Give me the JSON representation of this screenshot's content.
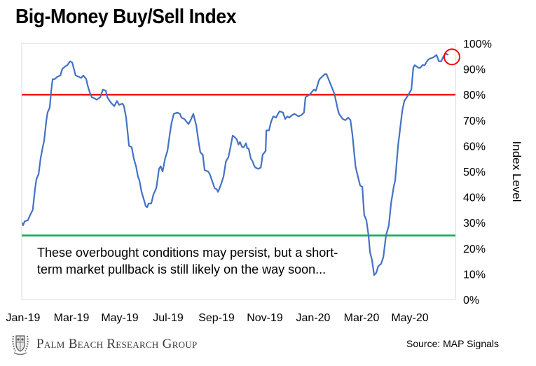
{
  "title": "Big-Money Buy/Sell Index",
  "annotation": {
    "line1": "These overbought conditions may persist, but a short-",
    "line2": "term market pullback is still likely on the way soon..."
  },
  "footer": {
    "brand": "Palm Beach Research Group",
    "logo_icon": "crest-logo-icon",
    "source": "Source: MAP Signals"
  },
  "colors": {
    "series": "#4472c4",
    "overbought_line": "#ff0000",
    "oversold_line": "#00b050",
    "highlight_circle": "#ff0000",
    "border": "#d9d9d9"
  },
  "chart_data": {
    "type": "line",
    "title": "Big-Money Buy/Sell Index",
    "xlabel": "",
    "ylabel": "Index Level",
    "ylim": [
      0,
      100
    ],
    "xlim_months": [
      0,
      17.8
    ],
    "y_ticks": [
      "0%",
      "10%",
      "20%",
      "30%",
      "40%",
      "50%",
      "60%",
      "70%",
      "80%",
      "90%",
      "100%"
    ],
    "x_ticks": [
      {
        "label": "Jan-19",
        "month": 0
      },
      {
        "label": "Mar-19",
        "month": 2
      },
      {
        "label": "May-19",
        "month": 4
      },
      {
        "label": "Jul-19",
        "month": 6
      },
      {
        "label": "Sep-19",
        "month": 8
      },
      {
        "label": "Nov-19",
        "month": 10
      },
      {
        "label": "Jan-20",
        "month": 12
      },
      {
        "label": "Mar-20",
        "month": 14
      },
      {
        "label": "May-20",
        "month": 16
      }
    ],
    "grid": false,
    "legend": "none",
    "y_axis_side": "right",
    "reference_lines": [
      {
        "name": "overbought",
        "value": 80,
        "color": "#ff0000"
      },
      {
        "name": "oversold",
        "value": 25,
        "color": "#00b050"
      }
    ],
    "highlight": {
      "label": "latest reading",
      "month": 17.6,
      "value": 95
    },
    "series": [
      {
        "name": "Big-Money Buy/Sell Index",
        "x_months": [
          0,
          0.03,
          0.09,
          0.23,
          0.32,
          0.43,
          0.52,
          0.58,
          0.67,
          0.75,
          0.84,
          0.9,
          0.99,
          1.04,
          1.13,
          1.19,
          1.25,
          1.33,
          1.45,
          1.57,
          1.65,
          1.77,
          1.86,
          1.97,
          2.06,
          2.2,
          2.32,
          2.43,
          2.52,
          2.64,
          2.7,
          2.78,
          2.87,
          2.99,
          3.07,
          3.22,
          3.33,
          3.45,
          3.51,
          3.65,
          3.8,
          3.91,
          4.0,
          4.14,
          4.2,
          4.29,
          4.35,
          4.41,
          4.52,
          4.61,
          4.7,
          4.78,
          4.84,
          4.93,
          5.04,
          5.1,
          5.16,
          5.22,
          5.33,
          5.42,
          5.54,
          5.6,
          5.65,
          5.72,
          5.8,
          5.9,
          6.0,
          6.12,
          6.17,
          6.26,
          6.41,
          6.52,
          6.58,
          6.7,
          6.78,
          6.87,
          6.96,
          7.07,
          7.19,
          7.28,
          7.36,
          7.46,
          7.54,
          7.68,
          7.75,
          7.84,
          7.95,
          8.04,
          8.09,
          8.2,
          8.32,
          8.42,
          8.52,
          8.61,
          8.7,
          8.77,
          8.87,
          8.94,
          9.0,
          9.09,
          9.16,
          9.25,
          9.3,
          9.36,
          9.45,
          9.52,
          9.6,
          9.65,
          9.75,
          9.86,
          9.94,
          10.06,
          10.09,
          10.2,
          10.29,
          10.38,
          10.49,
          10.57,
          10.64,
          10.78,
          10.87,
          10.96,
          11.04,
          11.16,
          11.25,
          11.34,
          11.42,
          11.54,
          11.65,
          11.71,
          11.88,
          12.06,
          12.14,
          12.25,
          12.29,
          12.51,
          12.58,
          12.75,
          12.9,
          13.04,
          13.1,
          13.25,
          13.36,
          13.48,
          13.57,
          13.65,
          13.78,
          13.84,
          13.97,
          14.06,
          14.14,
          14.23,
          14.32,
          14.38,
          14.46,
          14.55,
          14.64,
          14.72,
          14.84,
          14.93,
          15.04,
          15.16,
          15.25,
          15.36,
          15.42,
          15.54,
          15.59,
          15.71,
          15.8,
          15.9,
          15.97,
          16.09,
          16.17,
          16.23,
          16.38,
          16.46,
          16.55,
          16.64,
          16.77,
          16.84,
          16.99,
          17.13,
          17.23,
          17.33,
          17.42,
          17.51,
          17.62,
          17.74
        ],
        "values": [
          30,
          29,
          30.5,
          31,
          33,
          35,
          43,
          47,
          49,
          55,
          59.5,
          62,
          70,
          73,
          75,
          81.5,
          86,
          86,
          87,
          87.5,
          90,
          91,
          91.5,
          93,
          92.5,
          87.5,
          87,
          86.5,
          87.5,
          86,
          83.5,
          81,
          79,
          78.5,
          78,
          79,
          82,
          81.5,
          79,
          77,
          75.5,
          77.5,
          76,
          76.5,
          75.5,
          71,
          65.5,
          60,
          59.5,
          55,
          52,
          48,
          46.5,
          42,
          38.5,
          36.5,
          36,
          37.5,
          37.5,
          41,
          43.5,
          47.5,
          51,
          52,
          50,
          55,
          58,
          66,
          69,
          72.5,
          73,
          72.5,
          71,
          70.5,
          69.5,
          68.5,
          70,
          72.5,
          68,
          62,
          57.5,
          56.5,
          50.5,
          50,
          49,
          46.5,
          43.5,
          43,
          42,
          44.5,
          48,
          54,
          55.5,
          59.5,
          64,
          63.5,
          62.5,
          60.5,
          61.5,
          59.5,
          59.5,
          61,
          59,
          59,
          55,
          54,
          52,
          51.5,
          51,
          51.5,
          56.5,
          58,
          66,
          66,
          69.5,
          71.5,
          71,
          72.5,
          73.5,
          73,
          70.5,
          71.5,
          71,
          72,
          72.5,
          72,
          71.5,
          72,
          73,
          79,
          80,
          82,
          81.5,
          85,
          86,
          88,
          88,
          84,
          80.5,
          74.5,
          72.5,
          70.5,
          70,
          71,
          70,
          64.5,
          52,
          49.5,
          44.5,
          44,
          33,
          31,
          25,
          18.5,
          15.5,
          9.5,
          10.5,
          13,
          14,
          16.5,
          25,
          29,
          37.5,
          44,
          46.5,
          60,
          64,
          73.5,
          77.5,
          79,
          80,
          82,
          90.5,
          91.5,
          90.5,
          90.5,
          91.5,
          91.5,
          93.5,
          94,
          94.5,
          95.5,
          93,
          93,
          95,
          96,
          95.5
        ]
      }
    ]
  }
}
